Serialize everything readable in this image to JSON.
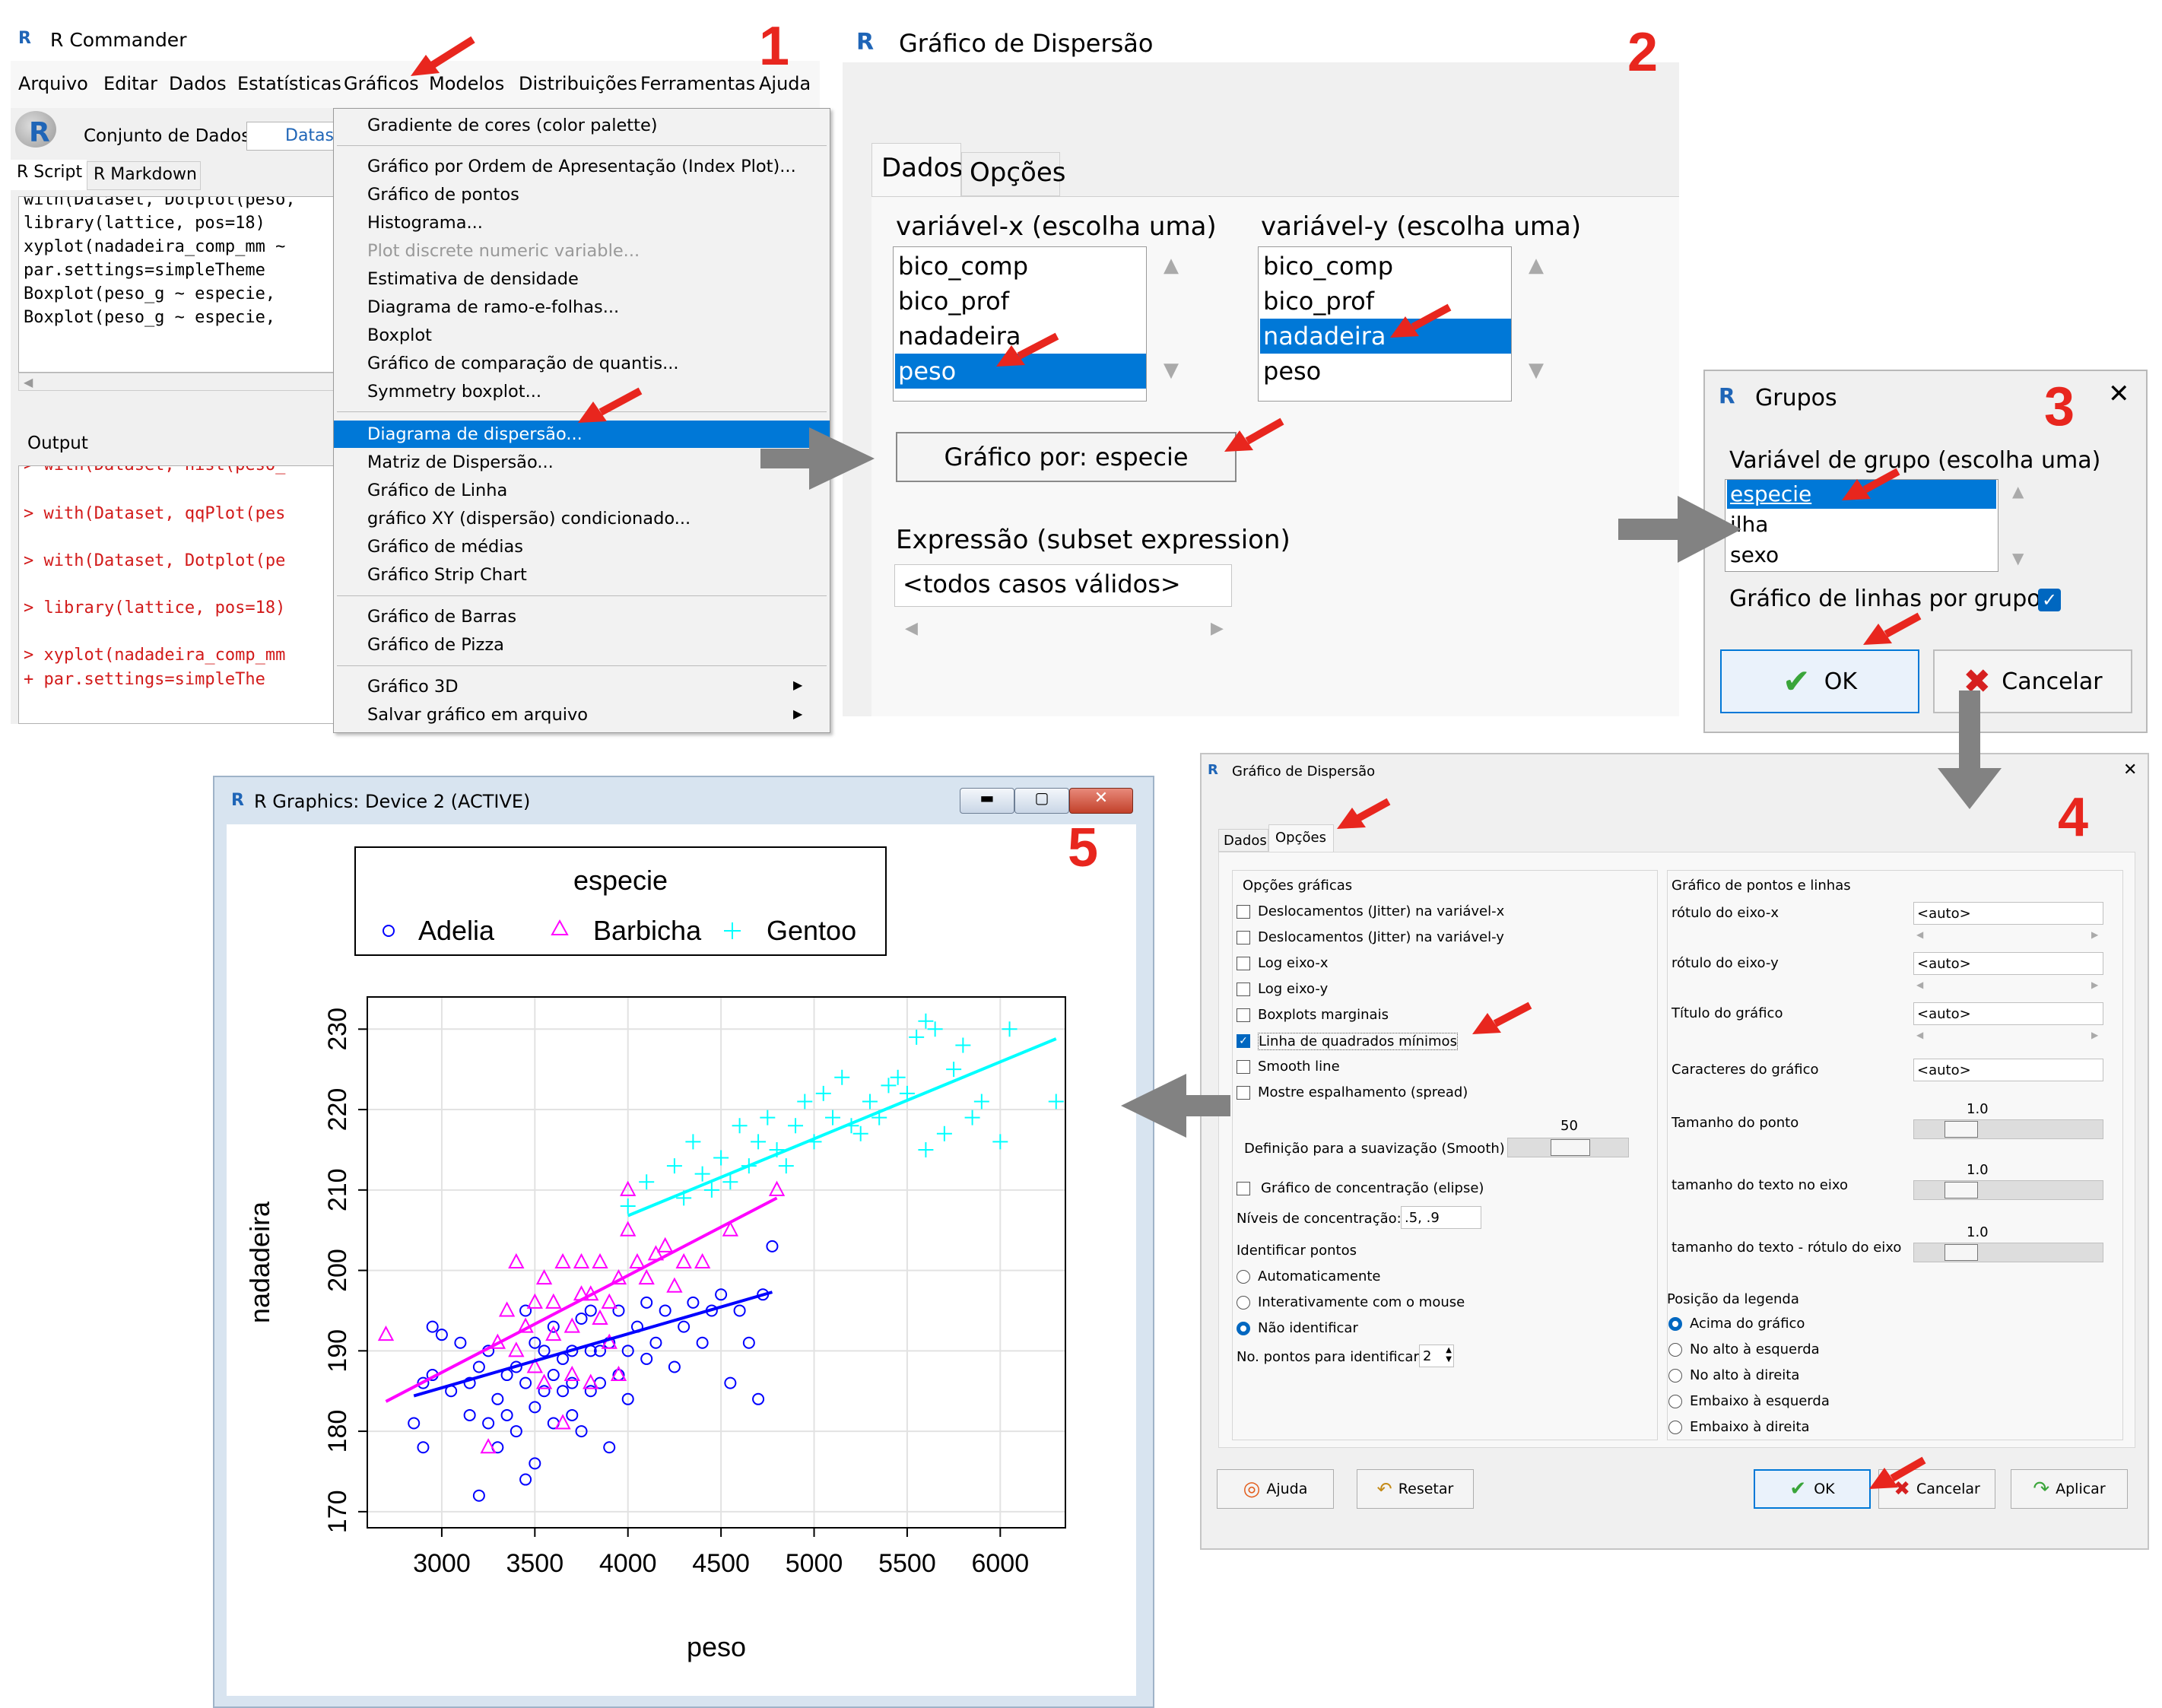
{
  "steps": [
    "1",
    "2",
    "3",
    "4",
    "5"
  ],
  "rcmdr": {
    "title": "R Commander",
    "menu": [
      "Arquivo",
      "Editar",
      "Dados",
      "Estatísticas",
      "Gráficos",
      "Modelos",
      "Distribuições",
      "Ferramentas",
      "Ajuda"
    ],
    "dataset_label": "Conjunto de Dados:",
    "dataset_value": "Datase",
    "tabs": [
      "R Script",
      "R Markdown"
    ],
    "script_lines": [
      "with(Dataset, Dotplot(peso,",
      "library(lattice, pos=18)",
      "xyplot(nadadeira_comp_mm ~",
      "  par.settings=simpleTheme",
      "Boxplot(peso_g ~ especie, ",
      "Boxplot(peso_g ~ especie, "
    ],
    "output_label": "Output",
    "output_lines": [
      "> with(Dataset, hist(peso_",
      "> with(Dataset, qqPlot(pes",
      "> with(Dataset, Dotplot(pe",
      "> library(lattice, pos=18)",
      "> xyplot(nadadeira_comp_mm",
      "+   par.settings=simpleThe"
    ],
    "graph_menu": {
      "group1": [
        "Gradiente de cores (color palette)"
      ],
      "group2": [
        "Gráfico por Ordem de Apresentação (Index Plot)...",
        "Gráfico de pontos",
        "Histograma...",
        "Plot discrete numeric variable...",
        "Estimativa de densidade",
        "Diagrama de ramo-e-folhas...",
        "Boxplot",
        "Gráfico de comparação de quantis...",
        "Symmetry boxplot..."
      ],
      "group3": [
        "Diagrama de dispersão...",
        "Matriz de Dispersão...",
        "Gráfico de Linha",
        "gráfico XY (dispersão) condicionado...",
        "Gráfico de médias",
        "Gráfico Strip Chart"
      ],
      "group4": [
        "Gráfico de Barras",
        "Gráfico de Pizza"
      ],
      "group5": [
        "Gráfico 3D",
        "Salvar gráfico em arquivo"
      ]
    }
  },
  "scatter_dialog": {
    "title": "Gráfico de Dispersão",
    "tabs": [
      "Dados",
      "Opções"
    ],
    "x_label": "variável-x (escolha uma)",
    "y_label": "variável-y (escolha uma)",
    "x_items": [
      "bico_comp",
      "bico_prof",
      "nadadeira",
      "peso"
    ],
    "y_items": [
      "bico_comp",
      "bico_prof",
      "nadadeira",
      "peso"
    ],
    "group_button": "Gráfico por: especie",
    "subset_label": "Expressão (subset expression)",
    "subset_value": "<todos casos válidos>"
  },
  "groups_dialog": {
    "title": "Grupos",
    "close": "✕",
    "var_label": "Variável de grupo (escolha uma)",
    "items": [
      "especie",
      "ilha",
      "sexo"
    ],
    "lines_label": "Gráfico de linhas por grupo",
    "ok": "OK",
    "cancel": "Cancelar"
  },
  "options_dialog": {
    "title": "Gráfico de Dispersão",
    "close": "✕",
    "tabs": [
      "Dados",
      "Opções"
    ],
    "graph_options_title": "Opções gráficas",
    "checkboxes": [
      "Deslocamentos (Jitter) na variável-x",
      "Deslocamentos (Jitter) na variável-y",
      "Log eixo-x",
      "Log eixo-y",
      "Boxplots marginais",
      "Linha de quadrados mínimos",
      "Smooth line",
      "Mostre espalhamento (spread)"
    ],
    "checked_index": 5,
    "smooth_value": "50",
    "smooth_label": "Definição para a suavização (Smooth)",
    "ellipse_label": "Gráfico de concentração (elipse)",
    "levels_label": "Níveis de concentração:",
    "levels_value": ".5, .9",
    "identify_title": "Identificar pontos",
    "identify_options": [
      "Automaticamente",
      "Interativamente com o mouse",
      "Não identificar"
    ],
    "identify_selected": 2,
    "npoints_label": "No. pontos para identificar",
    "npoints_value": "2",
    "points_lines_title": "Gráfico de pontos e linhas",
    "xlab_label": "rótulo do eixo-x",
    "ylab_label": "rótulo do eixo-y",
    "title_label": "Título do gráfico",
    "chars_label": "Caracteres do gráfico",
    "auto": "<auto>",
    "point_size_label": "Tamanho do ponto",
    "axis_text_label": "tamanho do texto no eixo",
    "axis_label_text_label": "tamanho do texto - rótulo do eixo",
    "slider_value": "1.0",
    "legend_title": "Posição da legenda",
    "legend_options": [
      "Acima do gráfico",
      "No alto à esquerda",
      "No alto à direita",
      "Embaixo à esquerda",
      "Embaixo à direita"
    ],
    "legend_selected": 0,
    "buttons": {
      "help": "Ajuda",
      "reset": "Resetar",
      "ok": "OK",
      "cancel": "Cancelar",
      "apply": "Aplicar"
    }
  },
  "graphics_window": {
    "title": "R Graphics: Device 2 (ACTIVE)",
    "legend_title": "especie",
    "legend": [
      "Adelia",
      "Barbicha",
      "Gentoo"
    ],
    "colors": {
      "Adelia": "#0000ff",
      "Barbicha": "#ff00ff",
      "Gentoo": "#00ffff"
    }
  },
  "chart_data": {
    "type": "scatter",
    "title": "",
    "xlabel": "peso",
    "ylabel": "nadadeira",
    "xlim": [
      2600,
      6350
    ],
    "ylim": [
      168,
      234
    ],
    "xticks": [
      "3000",
      "3500",
      "4000",
      "4500",
      "5000",
      "5500",
      "6000"
    ],
    "yticks": [
      "170",
      "180",
      "190",
      "200",
      "210",
      "220",
      "230"
    ],
    "legend_title": "especie",
    "legend_position": "top",
    "grid": true,
    "series": [
      {
        "name": "Adelia",
        "marker": "circle",
        "color": "#0000ff",
        "points": [
          [
            2850,
            181
          ],
          [
            2900,
            178
          ],
          [
            2900,
            186
          ],
          [
            2950,
            193
          ],
          [
            2950,
            187
          ],
          [
            3000,
            192
          ],
          [
            3050,
            185
          ],
          [
            3100,
            191
          ],
          [
            3150,
            186
          ],
          [
            3150,
            182
          ],
          [
            3200,
            172
          ],
          [
            3200,
            188
          ],
          [
            3250,
            181
          ],
          [
            3250,
            190
          ],
          [
            3300,
            178
          ],
          [
            3300,
            184
          ],
          [
            3350,
            187
          ],
          [
            3350,
            182
          ],
          [
            3400,
            180
          ],
          [
            3400,
            188
          ],
          [
            3450,
            186
          ],
          [
            3450,
            174
          ],
          [
            3450,
            195
          ],
          [
            3500,
            191
          ],
          [
            3500,
            176
          ],
          [
            3500,
            183
          ],
          [
            3550,
            185
          ],
          [
            3550,
            190
          ],
          [
            3600,
            181
          ],
          [
            3600,
            187
          ],
          [
            3600,
            193
          ],
          [
            3650,
            185
          ],
          [
            3650,
            189
          ],
          [
            3700,
            182
          ],
          [
            3700,
            190
          ],
          [
            3700,
            186
          ],
          [
            3750,
            194
          ],
          [
            3750,
            180
          ],
          [
            3800,
            190
          ],
          [
            3800,
            185
          ],
          [
            3800,
            195
          ],
          [
            3850,
            186
          ],
          [
            3850,
            190
          ],
          [
            3900,
            178
          ],
          [
            3900,
            191
          ],
          [
            3950,
            187
          ],
          [
            3950,
            195
          ],
          [
            4000,
            190
          ],
          [
            4000,
            184
          ],
          [
            4050,
            193
          ],
          [
            4100,
            189
          ],
          [
            4100,
            196
          ],
          [
            4150,
            191
          ],
          [
            4200,
            195
          ],
          [
            4250,
            188
          ],
          [
            4300,
            193
          ],
          [
            4350,
            196
          ],
          [
            4400,
            191
          ],
          [
            4450,
            195
          ],
          [
            4500,
            197
          ],
          [
            4550,
            186
          ],
          [
            4600,
            195
          ],
          [
            4650,
            191
          ],
          [
            4700,
            184
          ],
          [
            4725,
            197
          ],
          [
            4775,
            203
          ]
        ]
      },
      {
        "name": "Barbicha",
        "marker": "triangle",
        "color": "#ff00ff",
        "points": [
          [
            2700,
            192
          ],
          [
            3250,
            178
          ],
          [
            3300,
            191
          ],
          [
            3350,
            195
          ],
          [
            3400,
            190
          ],
          [
            3400,
            201
          ],
          [
            3450,
            193
          ],
          [
            3500,
            196
          ],
          [
            3500,
            188
          ],
          [
            3550,
            199
          ],
          [
            3550,
            186
          ],
          [
            3600,
            196
          ],
          [
            3600,
            192
          ],
          [
            3650,
            181
          ],
          [
            3650,
            201
          ],
          [
            3700,
            187
          ],
          [
            3700,
            193
          ],
          [
            3750,
            197
          ],
          [
            3750,
            201
          ],
          [
            3800,
            186
          ],
          [
            3800,
            197
          ],
          [
            3850,
            194
          ],
          [
            3850,
            201
          ],
          [
            3900,
            196
          ],
          [
            3900,
            191
          ],
          [
            3950,
            199
          ],
          [
            3950,
            187
          ],
          [
            4000,
            210
          ],
          [
            4000,
            205
          ],
          [
            4050,
            201
          ],
          [
            4100,
            199
          ],
          [
            4150,
            202
          ],
          [
            4200,
            203
          ],
          [
            4250,
            198
          ],
          [
            4300,
            201
          ],
          [
            4400,
            201
          ],
          [
            4550,
            205
          ],
          [
            4800,
            210
          ]
        ]
      },
      {
        "name": "Gentoo",
        "marker": "plus",
        "color": "#00ffff",
        "points": [
          [
            4000,
            208
          ],
          [
            4100,
            211
          ],
          [
            4250,
            213
          ],
          [
            4300,
            209
          ],
          [
            4350,
            216
          ],
          [
            4400,
            212
          ],
          [
            4450,
            210
          ],
          [
            4500,
            214
          ],
          [
            4550,
            211
          ],
          [
            4600,
            218
          ],
          [
            4650,
            213
          ],
          [
            4700,
            216
          ],
          [
            4750,
            219
          ],
          [
            4800,
            215
          ],
          [
            4850,
            213
          ],
          [
            4900,
            218
          ],
          [
            4950,
            221
          ],
          [
            5000,
            216
          ],
          [
            5050,
            222
          ],
          [
            5100,
            219
          ],
          [
            5150,
            224
          ],
          [
            5200,
            218
          ],
          [
            5250,
            217
          ],
          [
            5300,
            221
          ],
          [
            5350,
            219
          ],
          [
            5400,
            223
          ],
          [
            5450,
            224
          ],
          [
            5500,
            222
          ],
          [
            5550,
            229
          ],
          [
            5600,
            215
          ],
          [
            5600,
            231
          ],
          [
            5650,
            230
          ],
          [
            5700,
            217
          ],
          [
            5750,
            225
          ],
          [
            5800,
            228
          ],
          [
            5850,
            219
          ],
          [
            5900,
            221
          ],
          [
            6000,
            216
          ],
          [
            6050,
            230
          ],
          [
            6300,
            221
          ]
        ]
      }
    ],
    "lines": [
      {
        "name": "Adelia",
        "x": [
          2850,
          4775
        ],
        "y": [
          184.4,
          197.3
        ]
      },
      {
        "name": "Barbicha",
        "x": [
          2700,
          4800
        ],
        "y": [
          183.7,
          209.0
        ]
      },
      {
        "name": "Gentoo",
        "x": [
          4000,
          6300
        ],
        "y": [
          206.8,
          228.8
        ]
      }
    ]
  }
}
